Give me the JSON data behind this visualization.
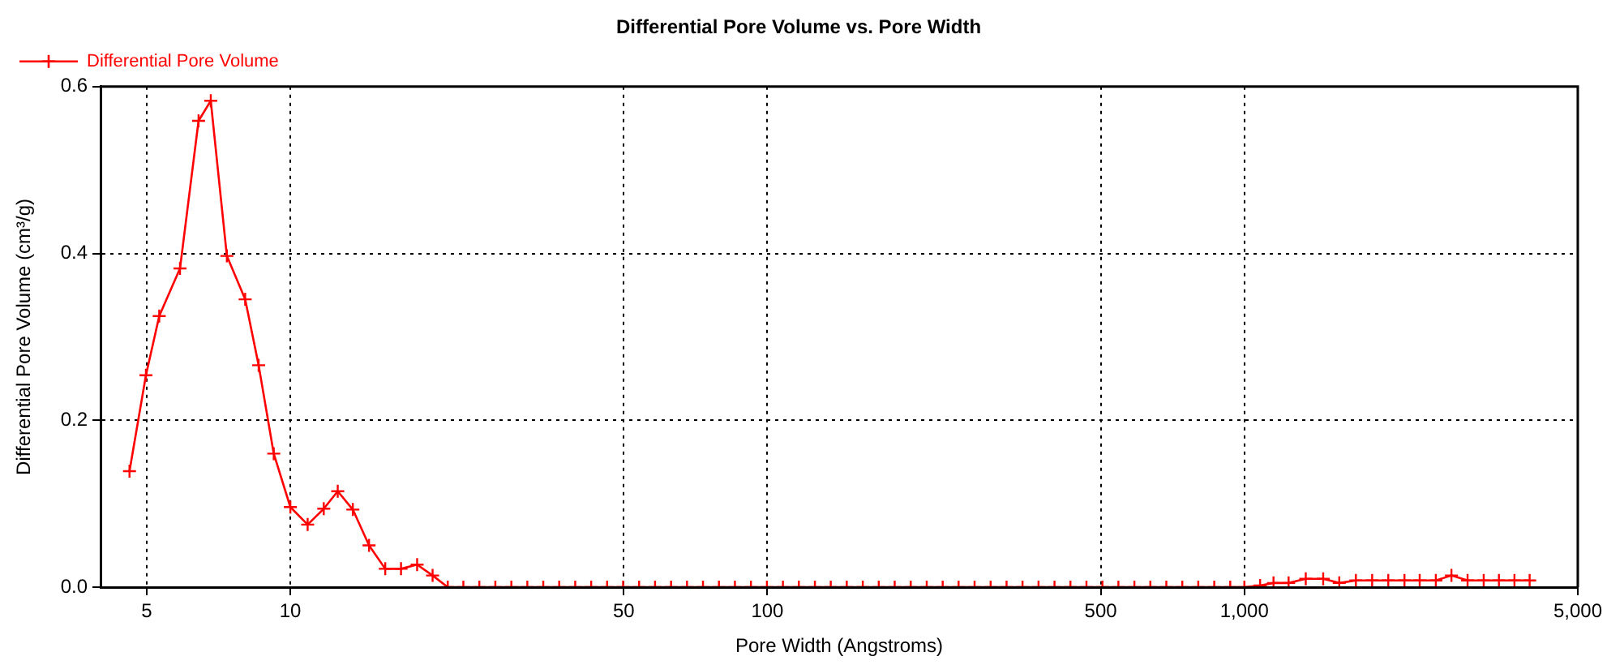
{
  "chart_data": {
    "type": "line",
    "title": "Differential Pore Volume vs. Pore Width",
    "xlabel": "Pore Width (Angstroms)",
    "ylabel": "Differential Pore Volume (cm³/g)",
    "log": "x",
    "xlim": [
      4,
      5000
    ],
    "xticks": [
      5,
      10,
      50,
      100,
      500,
      {
        "value": 1000,
        "label": "1,000"
      },
      {
        "value": 5000,
        "label": "5,000"
      }
    ],
    "ylim": [
      0,
      0.6
    ],
    "yticks": [
      {
        "value": 0,
        "label": "0.0"
      },
      {
        "value": 0.2,
        "label": "0.2"
      },
      {
        "value": 0.4,
        "label": "0.4"
      },
      {
        "value": 0.6,
        "label": "0.6"
      }
    ],
    "grid": true,
    "legend": "top left",
    "marker": "cross",
    "line_style": "solid",
    "series": [
      {
        "name": "Differential Pore Volume",
        "color": "#ff0000",
        "x": [
          4.6,
          4.98,
          5.31,
          5.87,
          6.42,
          6.81,
          7.36,
          8.04,
          8.58,
          9.23,
          10,
          10.87,
          11.75,
          12.57,
          13.52,
          14.62,
          15.81,
          17.06,
          18.44,
          19.87,
          21.38,
          23.05,
          24.9,
          26.9,
          29.06,
          31.39,
          33.9,
          36.61,
          39.55,
          42.72,
          46.14,
          49.84,
          53.84,
          58.15,
          62.82,
          67.85,
          73.29,
          79.16,
          85.51,
          92.37,
          99.79,
          107.8,
          116.4,
          125.8,
          135.8,
          146.7,
          158.5,
          171.2,
          184.9,
          199.8,
          215.8,
          233.1,
          251.7,
          271.9,
          293.8,
          317.3,
          342.7,
          370.2,
          399.9,
          431.9,
          466.6,
          504.0,
          544.4,
          588.1,
          635.2,
          686.1,
          741.1,
          800.5,
          864.7,
          934.0,
          1000,
          1079,
          1151,
          1238,
          1345,
          1463,
          1581,
          1713,
          1853,
          2003,
          2166,
          2331,
          2520,
          2717,
          2937,
          3175,
          3417,
          3683,
          3963
        ],
        "values": [
          0.139,
          0.254,
          0.325,
          0.382,
          0.559,
          0.583,
          0.397,
          0.345,
          0.266,
          0.16,
          0.096,
          0.075,
          0.094,
          0.115,
          0.093,
          0.05,
          0.022,
          0.022,
          0.027,
          0.014,
          0,
          0,
          0,
          0,
          0,
          0,
          0,
          0,
          0,
          0,
          0,
          0,
          0,
          0,
          0,
          0,
          0,
          0,
          0,
          0,
          0,
          0,
          0,
          0,
          0,
          0,
          0,
          0,
          0,
          0,
          0,
          0,
          0,
          0,
          0,
          0,
          0,
          0,
          0,
          0,
          0,
          0,
          0,
          0,
          0,
          0,
          0,
          0,
          0,
          0,
          0,
          0.002,
          0.005,
          0.005,
          0.01,
          0.01,
          0.005,
          0.008,
          0.008,
          0.008,
          0.008,
          0.008,
          0.008,
          0.014,
          0.008,
          0.008,
          0.008,
          0.008,
          0.008
        ]
      }
    ]
  }
}
